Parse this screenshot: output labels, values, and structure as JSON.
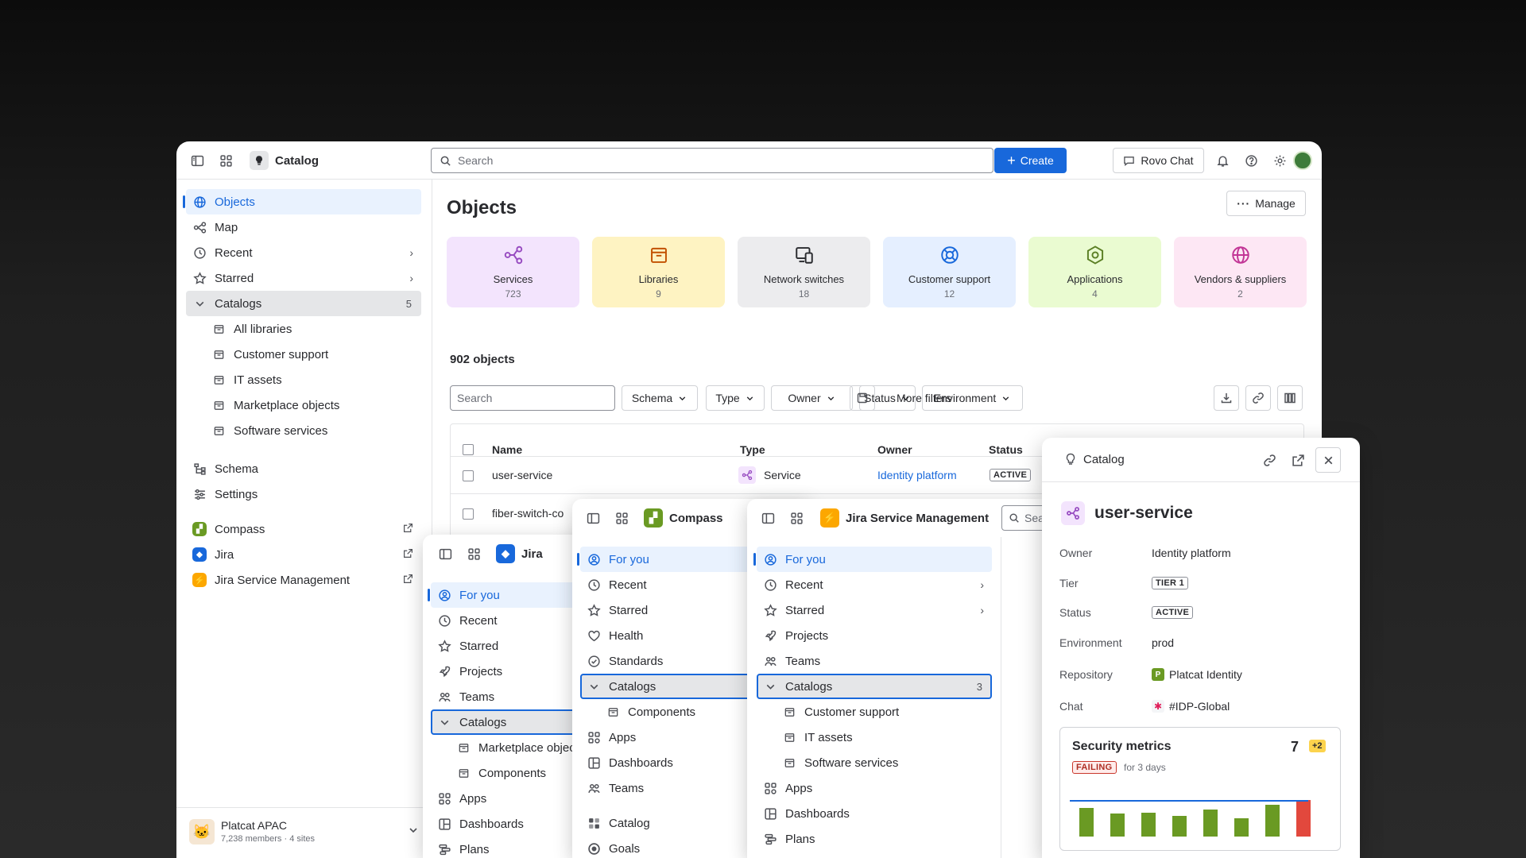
{
  "main": {
    "app_name": "Catalog",
    "search_placeholder": "Search",
    "create_label": "Create",
    "rovo_label": "Rovo Chat",
    "sidebar": {
      "objects": "Objects",
      "map": "Map",
      "recent": "Recent",
      "starred": "Starred",
      "catalogs": "Catalogs",
      "catalogs_count": "5",
      "children": [
        "All libraries",
        "Customer support",
        "IT assets",
        "Marketplace objects",
        "Software services"
      ],
      "schema": "Schema",
      "settings": "Settings",
      "apps": [
        "Compass",
        "Jira",
        "Jira Service Management"
      ],
      "workspace_name": "Platcat APAC",
      "workspace_meta": "7,238 members · 4 sites"
    },
    "page_title": "Objects",
    "manage_label": "Manage",
    "cards": [
      {
        "label": "Services",
        "count": "723",
        "icon": "services-icon",
        "bg": "#f3e4fd",
        "fg": "#964ac0"
      },
      {
        "label": "Libraries",
        "count": "9",
        "icon": "library-icon",
        "bg": "#fef3c2",
        "fg": "#c25100"
      },
      {
        "label": "Network switches",
        "count": "18",
        "icon": "devices-icon",
        "bg": "#ececee",
        "fg": "#292a2e"
      },
      {
        "label": "Customer support",
        "count": "12",
        "icon": "lifebuoy-icon",
        "bg": "#e5efff",
        "fg": "#1868db"
      },
      {
        "label": "Applications",
        "count": "4",
        "icon": "hexagon-icon",
        "bg": "#eafbd1",
        "fg": "#5b7f24"
      },
      {
        "label": "Vendors & suppliers",
        "count": "2",
        "icon": "globe-icon",
        "bg": "#fde7f4",
        "fg": "#c23596"
      }
    ],
    "objects_count": "902 objects",
    "filter_search_placeholder": "Search",
    "filters": [
      "Schema",
      "Type",
      "Owner",
      "Status",
      "Environment"
    ],
    "more_filters": "More filters",
    "table": {
      "headers": [
        "Name",
        "Type",
        "Owner",
        "Status"
      ],
      "rows": [
        {
          "name": "user-service",
          "type": "Service",
          "owner": "Identity platform",
          "status": "ACTIVE"
        },
        {
          "name": "fiber-switch-co"
        }
      ]
    }
  },
  "jira": {
    "app_name": "Jira",
    "items": [
      "For you",
      "Recent",
      "Starred",
      "Projects",
      "Teams",
      "Catalogs"
    ],
    "children": [
      "Marketplace objec",
      "Components"
    ],
    "after": [
      "Apps",
      "Dashboards",
      "Plans"
    ]
  },
  "compass": {
    "app_name": "Compass",
    "items": [
      "For you",
      "Recent",
      "Starred",
      "Health",
      "Standards",
      "Catalogs"
    ],
    "children": [
      "Components"
    ],
    "after": [
      "Apps",
      "Dashboards",
      "Teams",
      "Catalog",
      "Goals"
    ]
  },
  "jsm": {
    "app_name": "Jira Service Management",
    "search_placeholder": "Sea",
    "items": [
      "For you",
      "Recent",
      "Starred",
      "Projects",
      "Teams",
      "Catalogs"
    ],
    "catalogs_count": "3",
    "children": [
      "Customer support",
      "IT assets",
      "Software services"
    ],
    "after": [
      "Apps",
      "Dashboards",
      "Plans"
    ]
  },
  "detail": {
    "header": "Catalog",
    "title": "user-service",
    "fields": [
      {
        "label": "Owner",
        "value": "Identity platform"
      },
      {
        "label": "Tier",
        "value": "TIER 1"
      },
      {
        "label": "Status",
        "value": "ACTIVE"
      },
      {
        "label": "Environment",
        "value": "prod"
      },
      {
        "label": "Repository",
        "value": "Platcat Identity"
      },
      {
        "label": "Chat",
        "value": "#IDP-Global"
      }
    ],
    "metrics": {
      "title": "Security metrics",
      "score": "7",
      "delta": "+2",
      "status": "FAILING",
      "duration": "for 3 days",
      "bars": [
        38,
        30,
        32,
        27,
        36,
        24,
        42,
        48
      ],
      "bar_colors": [
        "#6a9a23",
        "#6a9a23",
        "#6a9a23",
        "#6a9a23",
        "#6a9a23",
        "#6a9a23",
        "#6a9a23",
        "#e2483d"
      ],
      "line_color": "#1868db"
    }
  },
  "colors": {
    "accent": "#1868db",
    "selected_bg": "#e9f2fe"
  }
}
